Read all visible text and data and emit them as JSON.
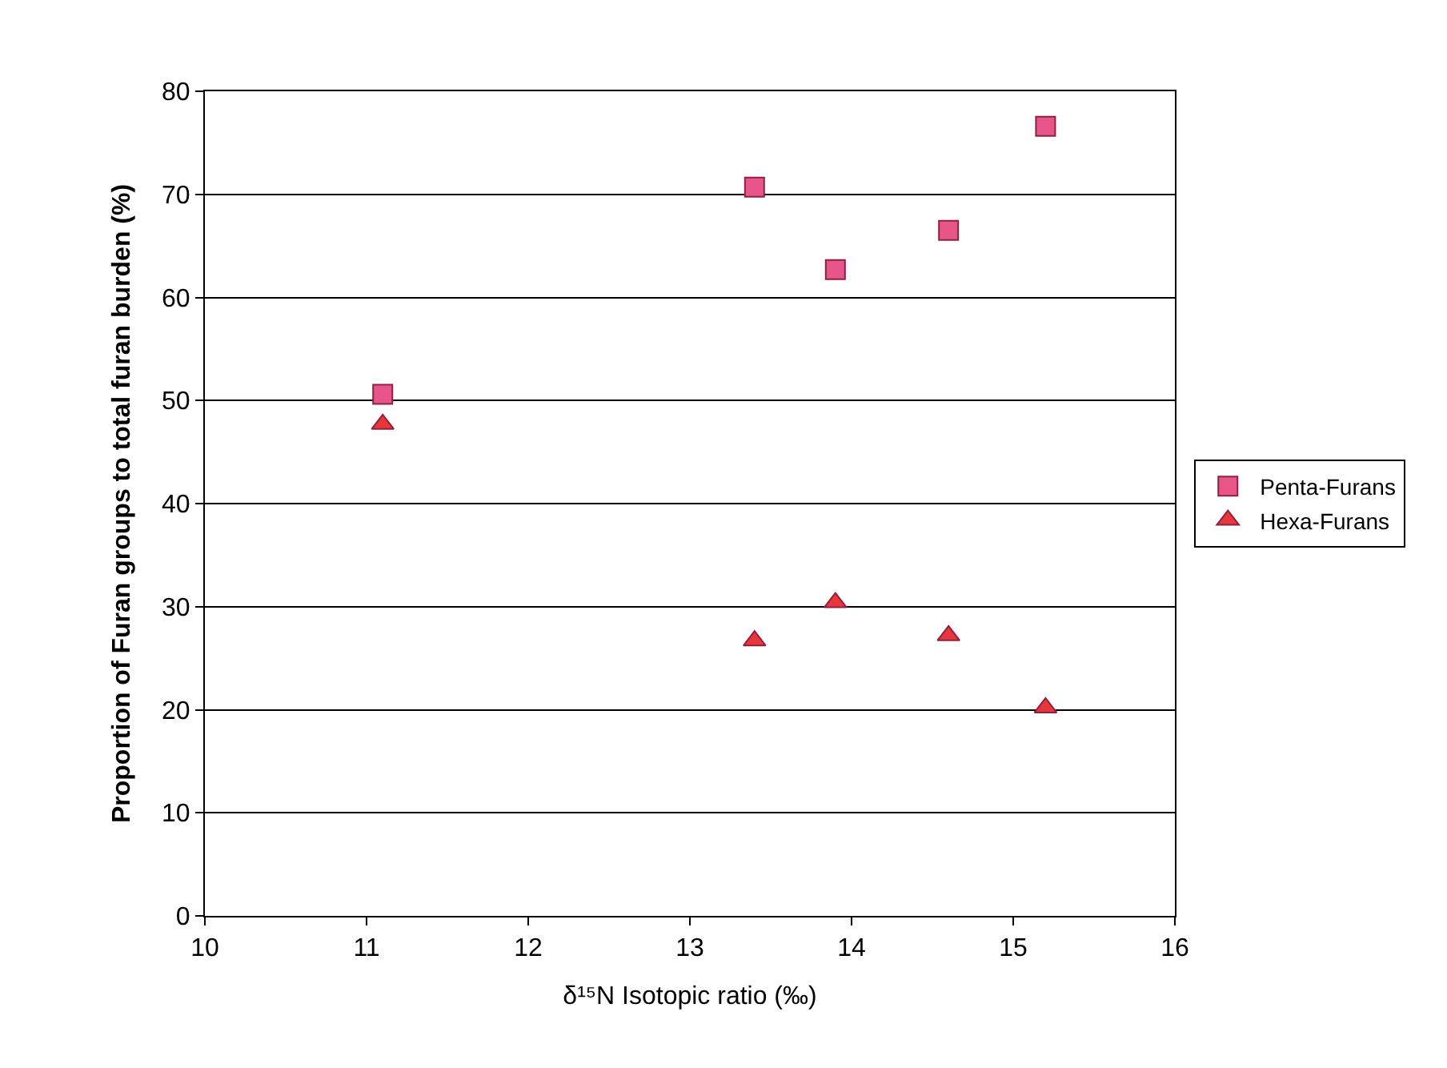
{
  "chart_data": {
    "type": "scatter",
    "xlabel": "δ¹⁵N Isotopic ratio (‰)",
    "ylabel": "Proportion of Furan groups to total furan burden (%)",
    "x": [
      11.1,
      13.4,
      13.9,
      14.6,
      15.2
    ],
    "series": [
      {
        "name": "Penta-Furans",
        "color": "#e8558a",
        "marker": "square",
        "values": [
          50.6,
          70.7,
          62.7,
          66.5,
          76.6
        ]
      },
      {
        "name": "Hexa-Furans",
        "color": "#e8363a",
        "marker": "triangle",
        "values": [
          47.7,
          26.7,
          30.4,
          27.2,
          20.2
        ]
      }
    ],
    "xlim": [
      10,
      16
    ],
    "xticks": [
      10,
      11,
      12,
      13,
      14,
      15,
      16
    ],
    "ylim": [
      0,
      80
    ],
    "yticks": [
      0,
      10,
      20,
      30,
      40,
      50,
      60,
      70,
      80
    ],
    "grid": "y",
    "legend": "right"
  }
}
